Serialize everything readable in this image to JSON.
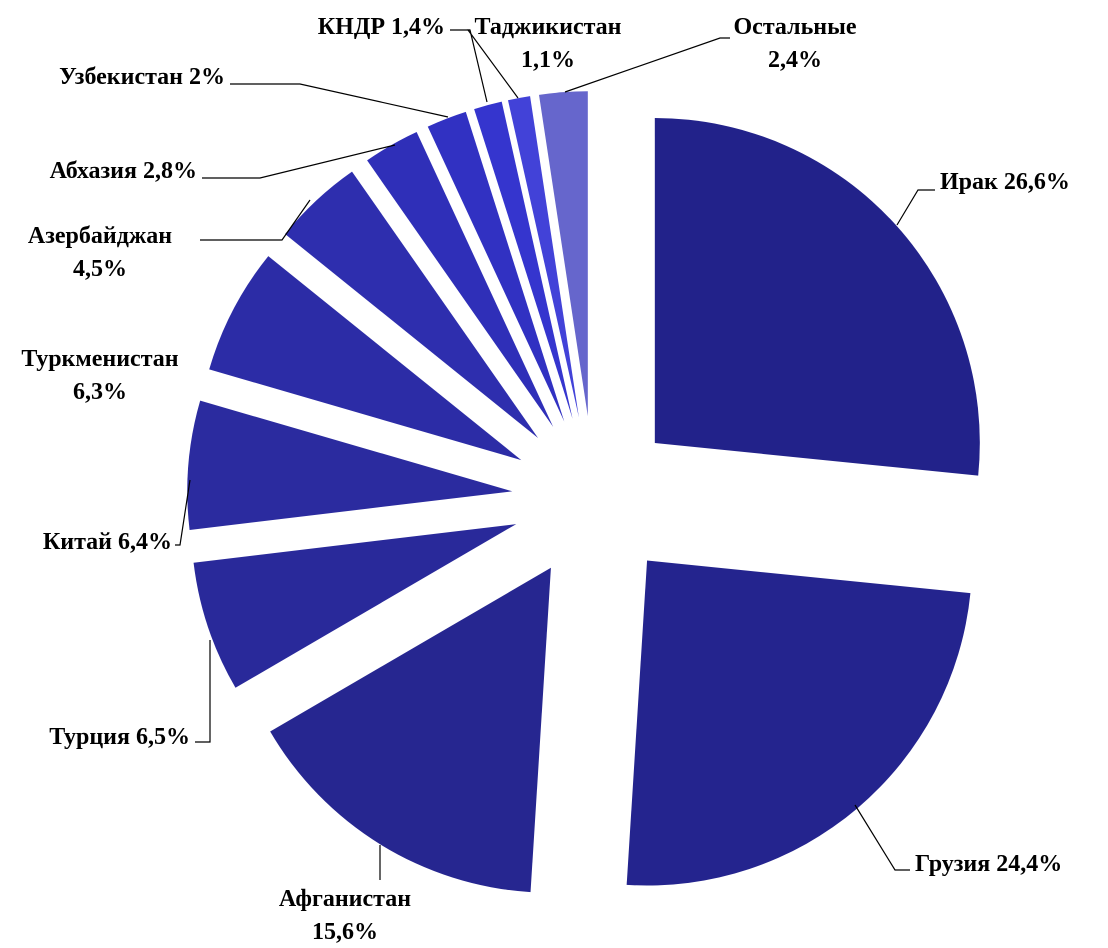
{
  "chart_data": {
    "type": "pie",
    "categories": [
      "Ирак",
      "Грузия",
      "Афганистан",
      "Турция",
      "Китай",
      "Туркменистан",
      "Азербайджан",
      "Абхазия",
      "Узбекистан",
      "КНДР",
      "Таджикистан",
      "Остальные"
    ],
    "values": [
      26.6,
      24.4,
      15.6,
      6.5,
      6.4,
      6.3,
      4.5,
      2.8,
      2,
      1.4,
      1.1,
      2.4
    ],
    "value_labels": [
      "26,6%",
      "24,4%",
      "15,6%",
      "6,5%",
      "6,4%",
      "6,3%",
      "4,5%",
      "2,8%",
      "2%",
      "1,4%",
      "1,1%",
      "2,4%"
    ],
    "colors": [
      "#22228a",
      "#24248e",
      "#262690",
      "#29299a",
      "#2b2b9f",
      "#2c2ca6",
      "#2e2eae",
      "#2f2fb8",
      "#3131c2",
      "#3535ce",
      "#4242d8",
      "#6666cc"
    ]
  }
}
